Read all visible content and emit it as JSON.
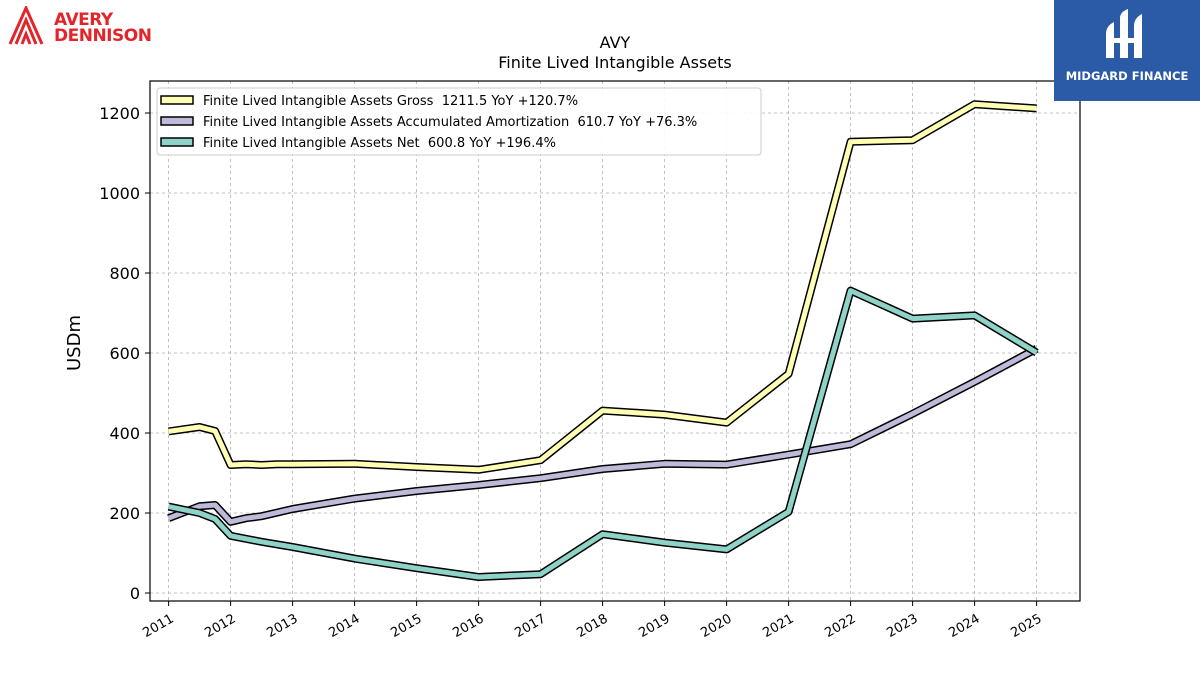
{
  "logos": {
    "company": {
      "line1": "AVERY",
      "line2": "DENNISON",
      "color": "#e3242b"
    },
    "publisher": {
      "text": "MIDGARD FINANCE",
      "background": "#2b5aa6"
    }
  },
  "chart_data": {
    "type": "line",
    "title": "AVY",
    "subtitle": "Finite Lived Intangible Assets",
    "xlabel": "",
    "ylabel": "USDm",
    "xlim": [
      2010.7,
      2025.7
    ],
    "ylim": [
      -20,
      1280
    ],
    "yticks": [
      0,
      200,
      400,
      600,
      800,
      1000,
      1200
    ],
    "xticks": [
      "2011",
      "2012",
      "2013",
      "2014",
      "2015",
      "2016",
      "2017",
      "2018",
      "2019",
      "2020",
      "2021",
      "2022",
      "2023",
      "2024",
      "2025"
    ],
    "grid": true,
    "legend_position": "top-left",
    "series": [
      {
        "name": "Finite Lived Intangible Assets Gross  1211.5 YoY +120.7%",
        "color": "#ffffb3",
        "points": [
          [
            2011.0,
            404
          ],
          [
            2011.5,
            415
          ],
          [
            2011.75,
            405
          ],
          [
            2012.0,
            320
          ],
          [
            2012.25,
            322
          ],
          [
            2012.5,
            320
          ],
          [
            2012.75,
            322
          ],
          [
            2013.0,
            322
          ],
          [
            2014.0,
            323
          ],
          [
            2015.0,
            315
          ],
          [
            2016.0,
            308
          ],
          [
            2017.0,
            332
          ],
          [
            2018.0,
            456
          ],
          [
            2019.0,
            446
          ],
          [
            2020.0,
            426
          ],
          [
            2021.0,
            548
          ],
          [
            2022.0,
            1128
          ],
          [
            2023.0,
            1132
          ],
          [
            2024.0,
            1222
          ],
          [
            2025.0,
            1211.5
          ]
        ]
      },
      {
        "name": "Finite Lived Intangible Assets Accumulated Amortization  610.7 YoY +76.3%",
        "color": "#bebada",
        "points": [
          [
            2011.0,
            187
          ],
          [
            2011.5,
            217
          ],
          [
            2011.75,
            220
          ],
          [
            2012.0,
            178
          ],
          [
            2012.25,
            187
          ],
          [
            2012.5,
            192
          ],
          [
            2013.0,
            210
          ],
          [
            2014.0,
            236
          ],
          [
            2015.0,
            255
          ],
          [
            2016.0,
            270
          ],
          [
            2017.0,
            287
          ],
          [
            2018.0,
            310
          ],
          [
            2019.0,
            323
          ],
          [
            2020.0,
            321
          ],
          [
            2021.0,
            346
          ],
          [
            2022.0,
            372
          ],
          [
            2023.0,
            448
          ],
          [
            2024.0,
            528
          ],
          [
            2025.0,
            610.7
          ]
        ]
      },
      {
        "name": "Finite Lived Intangible Assets Net  600.8 YoY +196.4%",
        "color": "#8dd3c7",
        "points": [
          [
            2011.0,
            216
          ],
          [
            2011.5,
            200
          ],
          [
            2011.75,
            185
          ],
          [
            2012.0,
            143
          ],
          [
            2012.5,
            128
          ],
          [
            2013.0,
            115
          ],
          [
            2014.0,
            86
          ],
          [
            2015.0,
            62
          ],
          [
            2016.0,
            40
          ],
          [
            2017.0,
            47
          ],
          [
            2018.0,
            147
          ],
          [
            2019.0,
            126
          ],
          [
            2020.0,
            109
          ],
          [
            2021.0,
            203
          ],
          [
            2022.0,
            756
          ],
          [
            2023.0,
            686
          ],
          [
            2024.0,
            694
          ],
          [
            2025.0,
            600.8
          ]
        ]
      }
    ]
  }
}
